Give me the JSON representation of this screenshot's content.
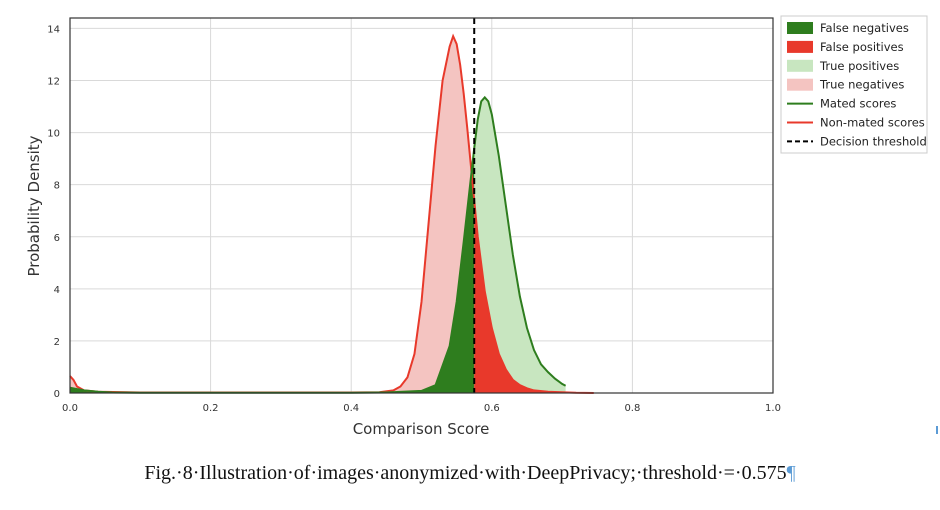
{
  "chart_data": {
    "type": "area",
    "title": "",
    "xlabel": "Comparison Score",
    "ylabel": "Probability Density",
    "xlim": [
      0.0,
      1.0
    ],
    "ylim": [
      0,
      14.4
    ],
    "x_ticks": [
      0.0,
      0.2,
      0.4,
      0.6,
      0.8,
      1.0
    ],
    "x_tick_labels": [
      "0.0",
      "0.2",
      "0.4",
      "0.6",
      "0.8",
      "1.0"
    ],
    "y_ticks": [
      0,
      2,
      4,
      6,
      8,
      10,
      12,
      14
    ],
    "y_tick_labels": [
      "0",
      "2",
      "4",
      "6",
      "8",
      "10",
      "12",
      "14"
    ],
    "grid": true,
    "threshold": 0.575,
    "series": [
      {
        "name": "Mated scores",
        "color": "#2e7d1e",
        "x": [
          0.0,
          0.01,
          0.02,
          0.04,
          0.06,
          0.1,
          0.2,
          0.3,
          0.4,
          0.45,
          0.5,
          0.52,
          0.54,
          0.55,
          0.56,
          0.57,
          0.575,
          0.58,
          0.585,
          0.59,
          0.595,
          0.6,
          0.61,
          0.62,
          0.63,
          0.64,
          0.65,
          0.66,
          0.67,
          0.68,
          0.69,
          0.7,
          0.705
        ],
        "y": [
          0.2,
          0.15,
          0.1,
          0.05,
          0.02,
          0.01,
          0.01,
          0.01,
          0.01,
          0.02,
          0.08,
          0.3,
          1.8,
          3.5,
          5.8,
          8.2,
          9.4,
          10.5,
          11.2,
          11.35,
          11.2,
          10.7,
          9.1,
          7.2,
          5.3,
          3.7,
          2.5,
          1.65,
          1.1,
          0.8,
          0.55,
          0.35,
          0.28
        ]
      },
      {
        "name": "Non-mated scores",
        "color": "#e8392b",
        "x": [
          0.0,
          0.005,
          0.01,
          0.02,
          0.04,
          0.1,
          0.2,
          0.3,
          0.4,
          0.44,
          0.46,
          0.47,
          0.48,
          0.49,
          0.5,
          0.51,
          0.52,
          0.53,
          0.54,
          0.545,
          0.55,
          0.555,
          0.56,
          0.565,
          0.57,
          0.575,
          0.58,
          0.59,
          0.6,
          0.61,
          0.62,
          0.63,
          0.64,
          0.65,
          0.66,
          0.68,
          0.7,
          0.72,
          0.745
        ],
        "y": [
          0.65,
          0.5,
          0.25,
          0.1,
          0.05,
          0.02,
          0.02,
          0.02,
          0.02,
          0.03,
          0.1,
          0.25,
          0.6,
          1.5,
          3.5,
          6.5,
          9.5,
          12.0,
          13.3,
          13.7,
          13.4,
          12.6,
          11.5,
          10.2,
          8.8,
          7.4,
          6.0,
          3.9,
          2.5,
          1.5,
          0.9,
          0.5,
          0.3,
          0.18,
          0.1,
          0.05,
          0.03,
          0.01,
          0.0
        ]
      }
    ],
    "legend": {
      "placement": "outside-top-right",
      "entries": [
        {
          "label": "False negatives",
          "kind": "fill",
          "color": "#2e7d1e"
        },
        {
          "label": "False positives",
          "kind": "fill",
          "color": "#e8392b"
        },
        {
          "label": "True positives",
          "kind": "fill",
          "color": "#c8e6c0"
        },
        {
          "label": "True negatives",
          "kind": "fill",
          "color": "#f4c4c1"
        },
        {
          "label": "Mated scores",
          "kind": "line",
          "color": "#2e7d1e"
        },
        {
          "label": "Non-mated scores",
          "kind": "line",
          "color": "#e8392b"
        },
        {
          "label": "Decision threshold",
          "kind": "dashed",
          "color": "#000000"
        }
      ]
    }
  },
  "caption": {
    "text": "Fig.·8·Illustration·of·images·anonymized·with·DeepPrivacy;·threshold·=·0.575",
    "pilcrow": "¶"
  }
}
